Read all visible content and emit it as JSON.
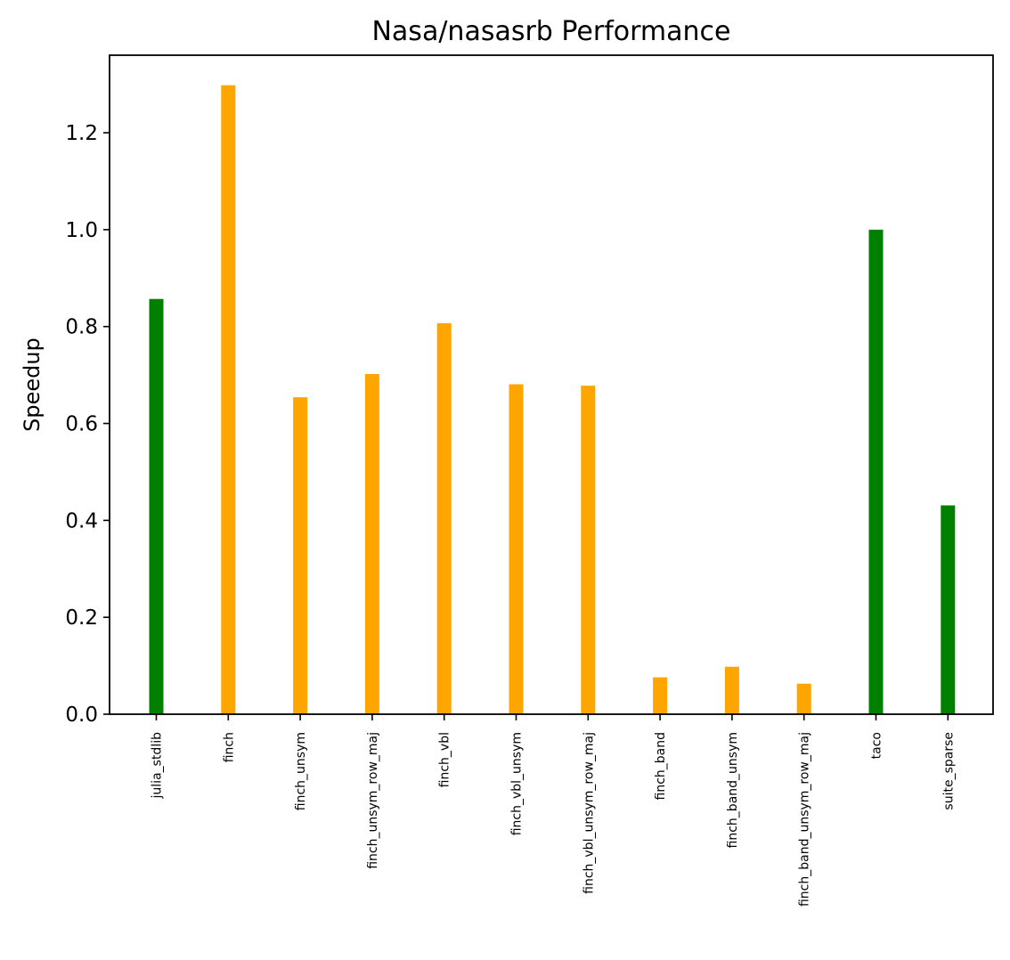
{
  "chart_data": {
    "type": "bar",
    "title": "Nasa/nasasrb Performance",
    "xlabel": "",
    "ylabel": "Speedup",
    "ylim": [
      0,
      1.36
    ],
    "yticks": [
      0.0,
      0.2,
      0.4,
      0.6,
      0.8,
      1.0,
      1.2
    ],
    "ytick_labels": [
      "0.0",
      "0.2",
      "0.4",
      "0.6",
      "0.8",
      "1.0",
      "1.2"
    ],
    "grid": false,
    "categories": [
      "julia_stdlib",
      "finch",
      "finch_unsym",
      "finch_unsym_row_maj",
      "finch_vbl",
      "finch_vbl_unsym",
      "finch_vbl_unsym_row_maj",
      "finch_band",
      "finch_band_unsym",
      "finch_band_unsym_row_maj",
      "taco",
      "suite_sparse"
    ],
    "values": [
      0.857,
      1.298,
      0.654,
      0.702,
      0.807,
      0.681,
      0.678,
      0.076,
      0.098,
      0.063,
      1.0,
      0.431
    ],
    "bar_colors": [
      "#008000",
      "#ffa500",
      "#ffa500",
      "#ffa500",
      "#ffa500",
      "#ffa500",
      "#ffa500",
      "#ffa500",
      "#ffa500",
      "#ffa500",
      "#008000",
      "#008000"
    ]
  }
}
